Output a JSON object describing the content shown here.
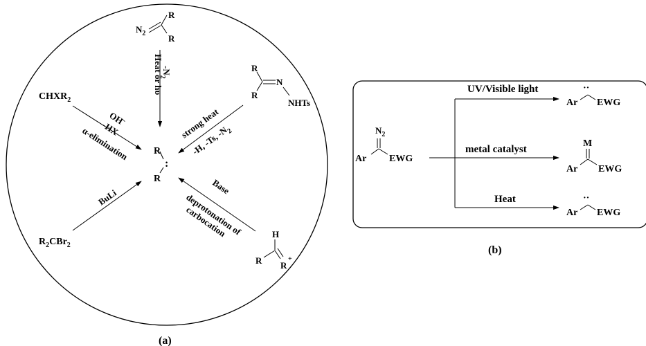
{
  "panel_a": {
    "caption": "(a)",
    "carbene": {
      "r_top": "R",
      "r_bottom": "R",
      "lone_pair": ":"
    },
    "diazo": {
      "n2": "N",
      "n2_sub": "2",
      "r1": "R",
      "r2": "R"
    },
    "diazo_conditions": {
      "line1": "Heat or hυ",
      "line2_prefix": "-N",
      "line2_sub": "2"
    },
    "hydrazone": {
      "r1": "R",
      "r2": "R",
      "n1": "N",
      "nhts": "NHTs"
    },
    "hydrazone_conditions": {
      "line1": "strong heat",
      "line2_prefix": "-H, -Ts, -N",
      "line2_sub": "2"
    },
    "haloalkane": {
      "label": "CHXR",
      "label_sub": "2"
    },
    "haloalkane_conditions": {
      "line1": "OH",
      "line1_sup": "-",
      "line2": "-HX",
      "line3": "α-elimination"
    },
    "dibromide": {
      "r": "R",
      "r_sub": "2",
      "cbr": "CBr",
      "cbr_sub": "2"
    },
    "dibromide_conditions": {
      "line1": "BuLi"
    },
    "carbocation": {
      "h": "H",
      "r1": "R",
      "r2": "R",
      "charge": "+"
    },
    "carbocation_conditions": {
      "line1": "Base",
      "line2": "deprotonation of",
      "line3": "carbocation"
    }
  },
  "panel_b": {
    "caption": "(b)",
    "reactant": {
      "n2": "N",
      "n2_sub": "2",
      "ar": "Ar",
      "ewg": "EWG"
    },
    "paths": [
      {
        "condition": "UV/Visible light",
        "product_ar": "Ar",
        "product_ewg": "EWG",
        "product_mark": "··"
      },
      {
        "condition": "metal catalyst",
        "product_ar": "Ar",
        "product_ewg": "EWG",
        "product_mark": "M"
      },
      {
        "condition": "Heat",
        "product_ar": "Ar",
        "product_ewg": "EWG",
        "product_mark": "··"
      }
    ]
  }
}
